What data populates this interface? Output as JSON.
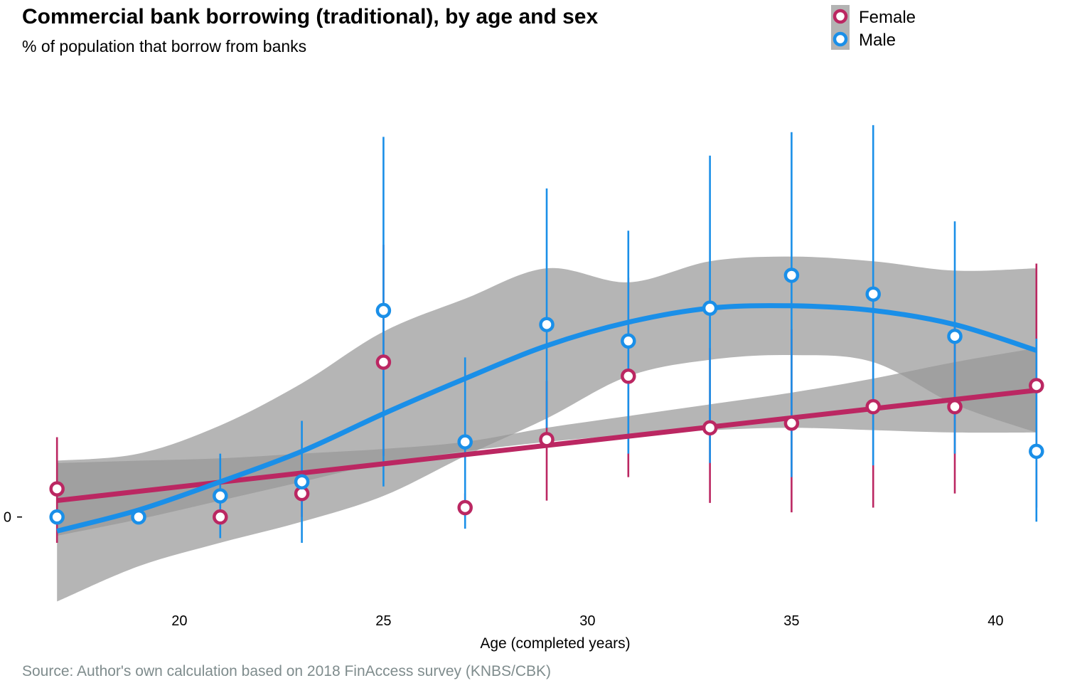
{
  "chart_data": {
    "type": "scatter",
    "title": "Commercial bank borrowing (traditional), by age and sex",
    "subtitle": "% of population that borrow from banks",
    "xlabel": "Age (completed years)",
    "ylabel": "",
    "caption": "Source: Author's own calculation based on 2018 FinAccess survey (KNBS/CBK)",
    "xlim": [
      16.3,
      41.7
    ],
    "ylim": [
      -0.19,
      0.95
    ],
    "x_ticks": [
      20,
      25,
      30,
      35,
      40
    ],
    "y_ticks": [
      0
    ],
    "legend_position": "top-right",
    "grid": false,
    "series": [
      {
        "name": "Female",
        "color": "#bb2762",
        "points": [
          {
            "x": 17,
            "y": 0.06,
            "lo": -0.055,
            "hi": 0.17
          },
          {
            "x": 21,
            "y": 0.0,
            "lo": 0.0,
            "hi": 0.0
          },
          {
            "x": 23,
            "y": 0.05,
            "lo": 0.0,
            "hi": 0.1
          },
          {
            "x": 25,
            "y": 0.33,
            "lo": 0.13,
            "hi": 0.58
          },
          {
            "x": 27,
            "y": 0.02,
            "lo": 0.0,
            "hi": 0.05
          },
          {
            "x": 29,
            "y": 0.165,
            "lo": 0.035,
            "hi": 0.29
          },
          {
            "x": 31,
            "y": 0.3,
            "lo": 0.085,
            "hi": 0.51
          },
          {
            "x": 33,
            "y": 0.19,
            "lo": 0.03,
            "hi": 0.36
          },
          {
            "x": 35,
            "y": 0.2,
            "lo": 0.01,
            "hi": 0.4
          },
          {
            "x": 37,
            "y": 0.235,
            "lo": 0.02,
            "hi": 0.44
          },
          {
            "x": 39,
            "y": 0.235,
            "lo": 0.05,
            "hi": 0.41
          },
          {
            "x": 41,
            "y": 0.28,
            "lo": 0.02,
            "hi": 0.54
          }
        ],
        "trend": {
          "x": [
            17,
            41
          ],
          "y": [
            0.035,
            0.27
          ]
        },
        "band": {
          "x": [
            17,
            19,
            21,
            23,
            25,
            27,
            29,
            31,
            33,
            35,
            37,
            39,
            41
          ],
          "lo": [
            -0.04,
            -0.005,
            0.035,
            0.075,
            0.115,
            0.14,
            0.16,
            0.175,
            0.185,
            0.19,
            0.185,
            0.18,
            0.18
          ],
          "hi": [
            0.115,
            0.12,
            0.125,
            0.135,
            0.145,
            0.16,
            0.19,
            0.215,
            0.24,
            0.265,
            0.295,
            0.33,
            0.36
          ]
        }
      },
      {
        "name": "Male",
        "color": "#1a8fe8",
        "points": [
          {
            "x": 17,
            "y": 0.0,
            "lo": 0.0,
            "hi": 0.0
          },
          {
            "x": 19,
            "y": 0.0,
            "lo": 0.0,
            "hi": 0.0
          },
          {
            "x": 21,
            "y": 0.045,
            "lo": -0.045,
            "hi": 0.135
          },
          {
            "x": 23,
            "y": 0.075,
            "lo": -0.055,
            "hi": 0.205
          },
          {
            "x": 25,
            "y": 0.44,
            "lo": 0.065,
            "hi": 0.81
          },
          {
            "x": 27,
            "y": 0.16,
            "lo": -0.025,
            "hi": 0.34
          },
          {
            "x": 29,
            "y": 0.41,
            "lo": 0.19,
            "hi": 0.7
          },
          {
            "x": 31,
            "y": 0.375,
            "lo": 0.135,
            "hi": 0.61
          },
          {
            "x": 33,
            "y": 0.445,
            "lo": 0.115,
            "hi": 0.77
          },
          {
            "x": 35,
            "y": 0.515,
            "lo": 0.085,
            "hi": 0.82
          },
          {
            "x": 37,
            "y": 0.475,
            "lo": 0.11,
            "hi": 0.835
          },
          {
            "x": 39,
            "y": 0.385,
            "lo": 0.135,
            "hi": 0.63
          },
          {
            "x": 41,
            "y": 0.14,
            "lo": -0.01,
            "hi": 0.38
          }
        ],
        "trend": {
          "x": [
            17,
            19,
            21,
            23,
            25,
            27,
            29,
            31,
            33,
            35,
            37,
            39,
            41
          ],
          "y": [
            -0.03,
            0.015,
            0.075,
            0.14,
            0.22,
            0.295,
            0.365,
            0.415,
            0.445,
            0.45,
            0.44,
            0.41,
            0.355
          ]
        },
        "band": {
          "x": [
            17,
            19,
            21,
            23,
            25,
            27,
            29,
            31,
            33,
            35,
            37,
            39,
            41
          ],
          "lo": [
            -0.18,
            -0.105,
            -0.055,
            -0.01,
            0.045,
            0.13,
            0.21,
            0.3,
            0.335,
            0.345,
            0.33,
            0.24,
            0.18
          ],
          "hi": [
            0.12,
            0.135,
            0.195,
            0.285,
            0.395,
            0.465,
            0.53,
            0.5,
            0.545,
            0.555,
            0.545,
            0.525,
            0.53
          ]
        }
      }
    ]
  }
}
